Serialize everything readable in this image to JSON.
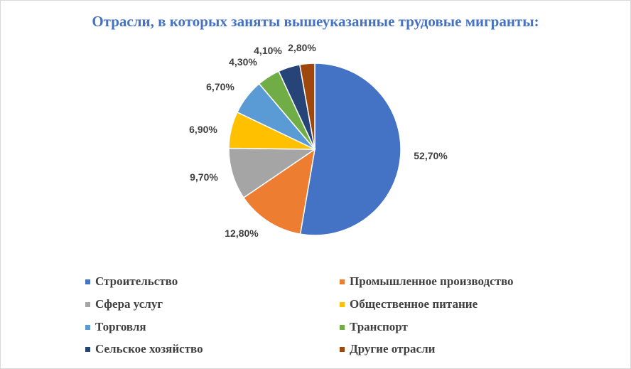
{
  "chart_data": {
    "type": "pie",
    "title": "Отрасли, в которых заняты вышеуказанные трудовые мигранты:",
    "legend_position": "bottom",
    "slices": [
      {
        "name": "Строительство",
        "value": 52.7,
        "label": "52,70%",
        "color": "#4472c4"
      },
      {
        "name": "Промышленное производство",
        "value": 12.8,
        "label": "12,80%",
        "color": "#ed7d31"
      },
      {
        "name": "Сфера услуг",
        "value": 9.7,
        "label": "9,70%",
        "color": "#a5a5a5"
      },
      {
        "name": "Общественное питание",
        "value": 6.9,
        "label": "6,90%",
        "color": "#ffc000"
      },
      {
        "name": "Торговля",
        "value": 6.7,
        "label": "6,70%",
        "color": "#5b9bd5"
      },
      {
        "name": "Транспорт",
        "value": 4.3,
        "label": "4,30%",
        "color": "#70ad47"
      },
      {
        "name": "Сельское хозяйство",
        "value": 4.1,
        "label": "4,10%",
        "color": "#264478"
      },
      {
        "name": "Другие отрасли",
        "value": 2.8,
        "label": "2,80%",
        "color": "#9e480e"
      }
    ]
  }
}
